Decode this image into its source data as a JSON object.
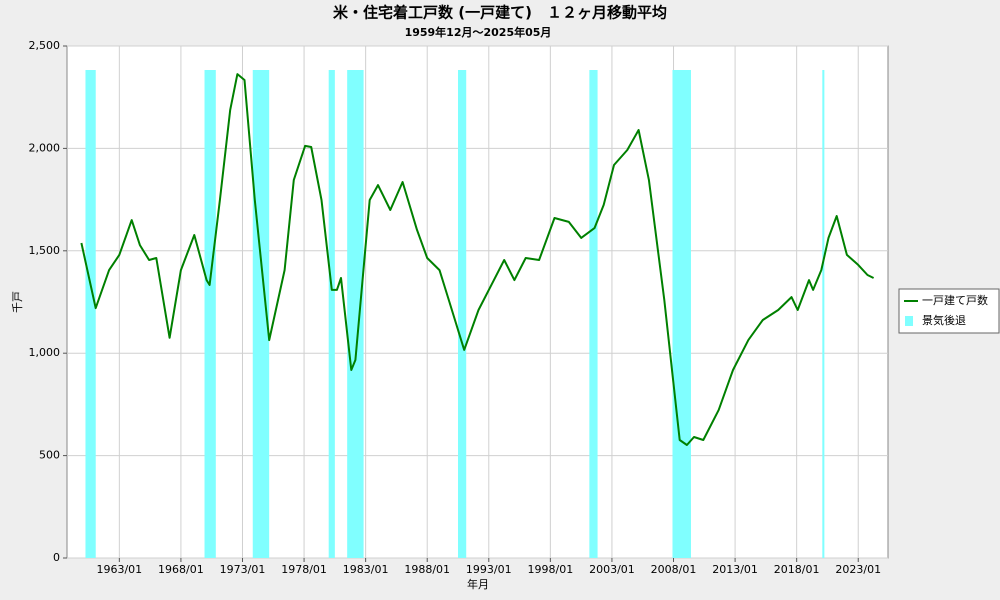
{
  "chart_data": {
    "type": "line",
    "title": "米・住宅着工戸数 (一戸建て)　１２ヶ月移動平均",
    "subtitle": "1959年12月～2025年05月",
    "x_label": "年月",
    "y_label": "千戸",
    "xlim": [
      "1958/10",
      "2025/06"
    ],
    "xticks": [
      "1963/01",
      "1968/01",
      "1973/01",
      "1978/01",
      "1983/01",
      "1988/01",
      "1993/01",
      "1998/01",
      "2003/01",
      "2008/01",
      "2013/01",
      "2018/01",
      "2023/01"
    ],
    "ylim": [
      0,
      2500
    ],
    "yticks": [
      0,
      500,
      {
        "value": 1000,
        "label": "1,000"
      },
      {
        "value": 1500,
        "label": "1,500"
      },
      {
        "value": 2000,
        "label": "2,000"
      },
      {
        "value": 2500,
        "label": "2,500"
      }
    ],
    "grid": true,
    "legend": "right",
    "recessions": {
      "name": "景気後退",
      "color": "#80ffff",
      "periods": [
        [
          "1960/04",
          "1961/02"
        ],
        [
          "1969/12",
          "1970/11"
        ],
        [
          "1973/11",
          "1975/03"
        ],
        [
          "1980/01",
          "1980/07"
        ],
        [
          "1981/07",
          "1982/11"
        ],
        [
          "1990/07",
          "1991/03"
        ],
        [
          "2001/03",
          "2001/11"
        ],
        [
          "2007/12",
          "2009/06"
        ],
        [
          "2020/02",
          "2020/04"
        ]
      ]
    },
    "series": [
      {
        "name": "一戸建て戸数",
        "color": "#008000",
        "x": [
          "1959/12",
          "1961/02",
          "1962/03",
          "1963/01",
          "1964/01",
          "1964/09",
          "1965/06",
          "1966/01",
          "1967/02",
          "1968/01",
          "1969/02",
          "1970/02",
          "1970/05",
          "1971/03",
          "1972/01",
          "1972/08",
          "1973/03",
          "1974/01",
          "1975/03",
          "1976/06",
          "1977/03",
          "1978/02",
          "1978/08",
          "1979/06",
          "1980/04",
          "1980/09",
          "1981/01",
          "1981/11",
          "1982/03",
          "1983/05",
          "1984/01",
          "1985/01",
          "1986/01",
          "1987/03",
          "1988/01",
          "1989/01",
          "1989/10",
          "1991/01",
          "1992/03",
          "1993/06",
          "1994/04",
          "1995/02",
          "1996/01",
          "1997/02",
          "1998/05",
          "1999/07",
          "2000/07",
          "2001/08",
          "2002/05",
          "2003/03",
          "2004/04",
          "2005/03",
          "2006/01",
          "2007/04",
          "2008/07",
          "2009/02",
          "2009/09",
          "2010/06",
          "2011/09",
          "2012/11",
          "2014/02",
          "2015/04",
          "2016/07",
          "2017/08",
          "2018/02",
          "2019/01",
          "2019/05",
          "2020/01",
          "2020/08",
          "2021/04",
          "2022/02",
          "2023/01",
          "2023/10",
          "2024/04"
        ],
        "values": [
          1538,
          1220,
          1406,
          1480,
          1650,
          1528,
          1455,
          1465,
          1075,
          1406,
          1577,
          1357,
          1333,
          1748,
          2188,
          2363,
          2334,
          1748,
          1064,
          1406,
          1846,
          2012,
          2007,
          1748,
          1309,
          1309,
          1367,
          918,
          967,
          1748,
          1821,
          1699,
          1836,
          1602,
          1465,
          1406,
          1260,
          1016,
          1211,
          1357,
          1455,
          1357,
          1465,
          1455,
          1660,
          1641,
          1563,
          1611,
          1724,
          1919,
          1992,
          2090,
          1846,
          1260,
          576,
          552,
          591,
          576,
          723,
          918,
          1065,
          1162,
          1211,
          1274,
          1211,
          1357,
          1309,
          1406,
          1563,
          1670,
          1480,
          1431,
          1382,
          1367
        ]
      }
    ]
  }
}
